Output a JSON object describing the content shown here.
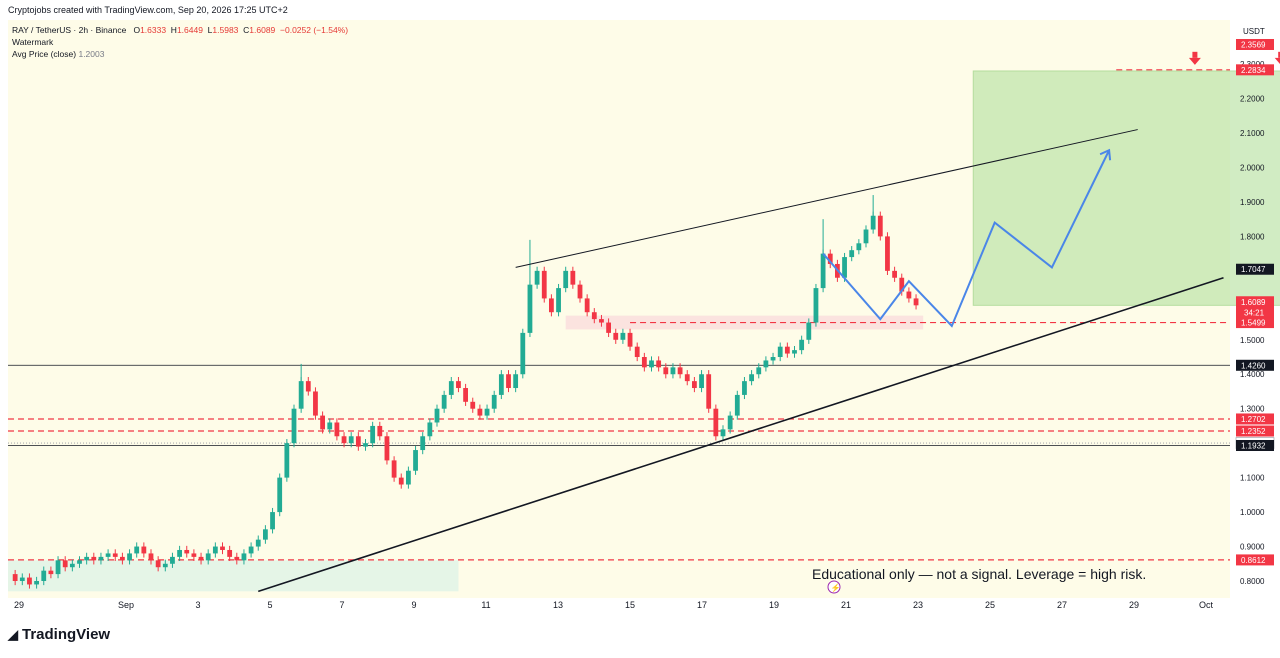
{
  "header": {
    "credit": "Cryptojobs created with TradingView.com, Sep 20, 2026 17:25 UTC+2"
  },
  "legend": {
    "symbol": "RAY / TetherUS · 2h · Binance",
    "open_label": "O",
    "open": "1.6333",
    "high_label": "H",
    "high": "1.6449",
    "low_label": "L",
    "low": "1.5983",
    "close_label": "C",
    "close": "1.6089",
    "change": "−0.0252 (−1.54%)",
    "watermark": "Watermark",
    "avg_label": "Avg Price (close)",
    "avg_value": "1.2003"
  },
  "price_axis": {
    "currency": "USDT"
  },
  "footer": {
    "brand": "TradingView"
  },
  "annotation": {
    "disclaimer": "Educational only — not a signal. Leverage  = high risk."
  },
  "colors": {
    "bullish": "#22ab94",
    "bearish": "#f23645",
    "target_zone": "#b9e3a4",
    "projection": "#4a86e8",
    "support_dashed": "#f23645"
  },
  "chart_data": {
    "type": "candlestick",
    "symbol": "RAY / TetherUS",
    "interval": "2h",
    "exchange": "Binance",
    "ylim": [
      0.77,
      2.37
    ],
    "y_ticks": [
      0.8,
      0.9,
      1.0,
      1.1,
      1.3,
      1.4,
      1.5,
      1.8,
      1.9,
      2.0,
      2.1,
      2.2,
      2.3
    ],
    "x_ticks": [
      "29",
      "Sep",
      "3",
      "5",
      "7",
      "9",
      "11",
      "13",
      "15",
      "17",
      "19",
      "21",
      "23",
      "25",
      "27",
      "29",
      "Oct"
    ],
    "price_path": [
      [
        0,
        0.82
      ],
      [
        1,
        0.8
      ],
      [
        2,
        0.81
      ],
      [
        3,
        0.79
      ],
      [
        4,
        0.8
      ],
      [
        5,
        0.83
      ],
      [
        6,
        0.82
      ],
      [
        7,
        0.86
      ],
      [
        8,
        0.84
      ],
      [
        9,
        0.85
      ],
      [
        10,
        0.86
      ],
      [
        11,
        0.87
      ],
      [
        12,
        0.86
      ],
      [
        13,
        0.87
      ],
      [
        14,
        0.88
      ],
      [
        15,
        0.87
      ],
      [
        16,
        0.86
      ],
      [
        17,
        0.88
      ],
      [
        18,
        0.9
      ],
      [
        19,
        0.88
      ],
      [
        20,
        0.86
      ],
      [
        21,
        0.84
      ],
      [
        22,
        0.85
      ],
      [
        23,
        0.87
      ],
      [
        24,
        0.89
      ],
      [
        25,
        0.88
      ],
      [
        26,
        0.87
      ],
      [
        27,
        0.86
      ],
      [
        28,
        0.88
      ],
      [
        29,
        0.9
      ],
      [
        30,
        0.89
      ],
      [
        31,
        0.87
      ],
      [
        32,
        0.86
      ],
      [
        33,
        0.88
      ],
      [
        34,
        0.9
      ],
      [
        35,
        0.92
      ],
      [
        36,
        0.95
      ],
      [
        37,
        1.0
      ],
      [
        38,
        1.1
      ],
      [
        39,
        1.2
      ],
      [
        40,
        1.3
      ],
      [
        41,
        1.38
      ],
      [
        42,
        1.35
      ],
      [
        43,
        1.28
      ],
      [
        44,
        1.24
      ],
      [
        45,
        1.26
      ],
      [
        46,
        1.22
      ],
      [
        47,
        1.2
      ],
      [
        48,
        1.22
      ],
      [
        49,
        1.19
      ],
      [
        50,
        1.2
      ],
      [
        51,
        1.25
      ],
      [
        52,
        1.22
      ],
      [
        53,
        1.15
      ],
      [
        54,
        1.1
      ],
      [
        55,
        1.08
      ],
      [
        56,
        1.12
      ],
      [
        57,
        1.18
      ],
      [
        58,
        1.22
      ],
      [
        59,
        1.26
      ],
      [
        60,
        1.3
      ],
      [
        61,
        1.34
      ],
      [
        62,
        1.38
      ],
      [
        63,
        1.36
      ],
      [
        64,
        1.32
      ],
      [
        65,
        1.3
      ],
      [
        66,
        1.28
      ],
      [
        67,
        1.3
      ],
      [
        68,
        1.34
      ],
      [
        69,
        1.4
      ],
      [
        70,
        1.36
      ],
      [
        71,
        1.4
      ],
      [
        72,
        1.52
      ],
      [
        73,
        1.66
      ],
      [
        74,
        1.7
      ],
      [
        75,
        1.62
      ],
      [
        76,
        1.58
      ],
      [
        77,
        1.65
      ],
      [
        78,
        1.7
      ],
      [
        79,
        1.66
      ],
      [
        80,
        1.62
      ],
      [
        81,
        1.58
      ],
      [
        82,
        1.56
      ],
      [
        83,
        1.55
      ],
      [
        84,
        1.52
      ],
      [
        85,
        1.5
      ],
      [
        86,
        1.52
      ],
      [
        87,
        1.48
      ],
      [
        88,
        1.45
      ],
      [
        89,
        1.42
      ],
      [
        90,
        1.44
      ],
      [
        91,
        1.42
      ],
      [
        92,
        1.4
      ],
      [
        93,
        1.42
      ],
      [
        94,
        1.4
      ],
      [
        95,
        1.38
      ],
      [
        96,
        1.36
      ],
      [
        97,
        1.4
      ],
      [
        98,
        1.3
      ],
      [
        99,
        1.22
      ],
      [
        100,
        1.24
      ],
      [
        101,
        1.28
      ],
      [
        102,
        1.34
      ],
      [
        103,
        1.38
      ],
      [
        104,
        1.4
      ],
      [
        105,
        1.42
      ],
      [
        106,
        1.44
      ],
      [
        107,
        1.45
      ],
      [
        108,
        1.48
      ],
      [
        109,
        1.46
      ],
      [
        110,
        1.47
      ],
      [
        111,
        1.5
      ],
      [
        112,
        1.55
      ],
      [
        113,
        1.65
      ],
      [
        114,
        1.75
      ],
      [
        115,
        1.72
      ],
      [
        116,
        1.68
      ],
      [
        117,
        1.74
      ],
      [
        118,
        1.76
      ],
      [
        119,
        1.78
      ],
      [
        120,
        1.82
      ],
      [
        121,
        1.86
      ],
      [
        122,
        1.8
      ],
      [
        123,
        1.7
      ],
      [
        124,
        1.68
      ],
      [
        125,
        1.64
      ],
      [
        126,
        1.62
      ],
      [
        127,
        1.6
      ]
    ],
    "swing_high_wicks": [
      {
        "x": 41,
        "high": 1.43
      },
      {
        "x": 73,
        "high": 1.79
      },
      {
        "x": 114,
        "high": 1.85
      },
      {
        "x": 121,
        "high": 1.92
      }
    ],
    "levels": [
      {
        "price": "2.3569",
        "style": "axis-tag",
        "color": "#f23645"
      },
      {
        "price": "2.2834",
        "style": "dashed",
        "color": "#f23645"
      },
      {
        "price": "1.7047",
        "style": "axis-tag",
        "color": "#131722"
      },
      {
        "price": "1.6089",
        "style": "current",
        "color": "#f23645",
        "countdown": "34:21"
      },
      {
        "price": "1.5499",
        "style": "dashed",
        "color": "#f23645"
      },
      {
        "price": "1.4260",
        "style": "solid",
        "color": "#131722"
      },
      {
        "price": "1.2702",
        "style": "dashed",
        "color": "#f23645"
      },
      {
        "price": "1.2352",
        "style": "dashed",
        "color": "#f23645"
      },
      {
        "price": "1.2003",
        "style": "avg",
        "color": "#9598a1"
      },
      {
        "price": "1.1932",
        "style": "solid",
        "color": "#131722"
      },
      {
        "price": "0.8612",
        "style": "dashed",
        "color": "#f23645"
      }
    ],
    "trendlines": {
      "upper": [
        [
          71,
          1.71
        ],
        [
          158,
          2.11
        ]
      ],
      "lower": [
        [
          35,
          0.77
        ],
        [
          170,
          1.68
        ]
      ]
    },
    "target_zone": {
      "x_from": 135,
      "x_to": 178,
      "y_from": 1.6,
      "y_to": 2.28
    },
    "demand_zone": {
      "x_from": 78,
      "x_to": 128,
      "y_from": 1.53,
      "y_to": 1.57
    },
    "accumulation_zone": {
      "x_from": 0,
      "x_to": 63,
      "y_from": 0.77,
      "y_to": 0.86
    },
    "projection_path": [
      [
        114,
        1.75
      ],
      [
        122,
        1.56
      ],
      [
        126,
        1.67
      ],
      [
        132,
        1.54
      ],
      [
        138,
        1.84
      ],
      [
        146,
        1.71
      ],
      [
        154,
        2.05
      ]
    ],
    "arrow_markers_x": [
      166,
      178
    ]
  }
}
